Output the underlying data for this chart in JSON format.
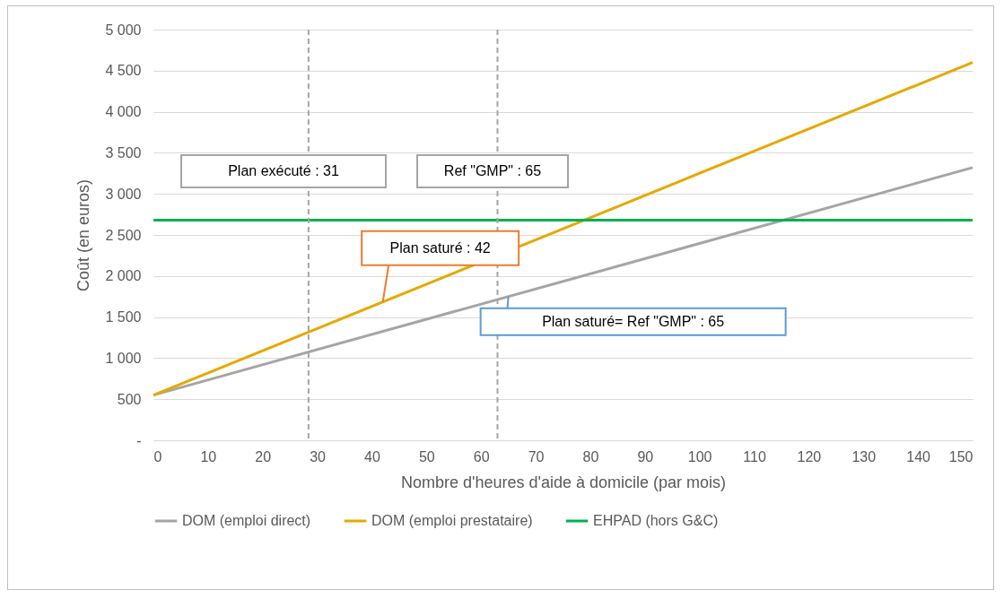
{
  "chart_data": {
    "type": "line",
    "xlabel": "Nombre d'heures d'aide à domicile (par mois)",
    "ylabel": "Coût (en euros)",
    "x": [
      0,
      150
    ],
    "series": [
      {
        "name": "DOM (emploi direct)",
        "color": "#a5a5a5",
        "values": [
          550,
          3320
        ]
      },
      {
        "name": "DOM (emploi prestataire)",
        "color": "#e5a900",
        "values": [
          550,
          4600
        ]
      },
      {
        "name": "EHPAD (hors G&C)",
        "color": "#00b050",
        "values": [
          2680,
          2680
        ]
      }
    ],
    "xlim": [
      0,
      150
    ],
    "xticks": [
      0,
      10,
      20,
      30,
      40,
      50,
      60,
      70,
      80,
      90,
      100,
      110,
      120,
      130,
      140,
      150
    ],
    "ylim": [
      0,
      5000
    ],
    "yticks": [
      {
        "value": 0,
        "label": "-"
      },
      500,
      {
        "value": 1000,
        "label": "1 000"
      },
      {
        "value": 1500,
        "label": "1 500"
      },
      {
        "value": 2000,
        "label": "2 000"
      },
      {
        "value": 2500,
        "label": "2 500"
      },
      {
        "value": 3000,
        "label": "3 000"
      },
      {
        "value": 3500,
        "label": "3 500"
      },
      {
        "value": 4000,
        "label": "4 000"
      },
      {
        "value": 4500,
        "label": "4 500"
      },
      {
        "value": 5000,
        "label": "5 000"
      }
    ],
    "ref_lines": [
      {
        "axis": "x",
        "value": 28.4,
        "color": "#a5a5a5",
        "line_style": "dashed"
      },
      {
        "axis": "x",
        "value": 63,
        "color": "#a5a5a5",
        "line_style": "dashed"
      }
    ],
    "annotations": [
      "Plan exécuté : 31",
      "Ref \"GMP\" : 65",
      {
        "text": "Plan saturé : 42",
        "x": 42,
        "y": 1684
      },
      {
        "text": "Plan saturé= Ref \"GMP\" : 65",
        "x": 65,
        "y": 1750
      }
    ],
    "grid": "y",
    "legend": "bottom",
    "marker": "none",
    "line_style": "solid"
  }
}
